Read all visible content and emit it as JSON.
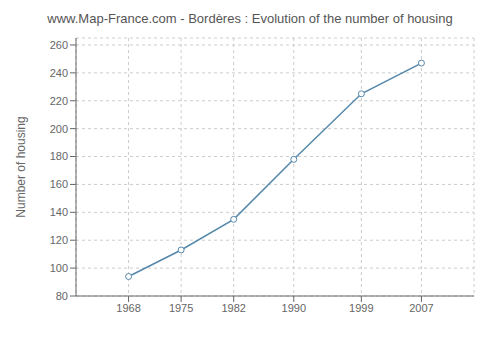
{
  "chart_data": {
    "type": "line",
    "title": "www.Map-France.com - Bordères : Evolution of the number of housing",
    "ylabel": "Number of housing",
    "x": [
      1968,
      1975,
      1982,
      1990,
      1999,
      2007
    ],
    "values": [
      94,
      113,
      135,
      178,
      225,
      247
    ],
    "xlim": [
      1961,
      2014
    ],
    "xticks": [
      1968,
      1975,
      1982,
      1990,
      1999,
      2007
    ],
    "ylim": [
      80,
      265
    ],
    "yticks": [
      80,
      100,
      120,
      140,
      160,
      180,
      200,
      220,
      240,
      260
    ],
    "color": "#5588aa",
    "marker": "circle",
    "grid": true
  }
}
